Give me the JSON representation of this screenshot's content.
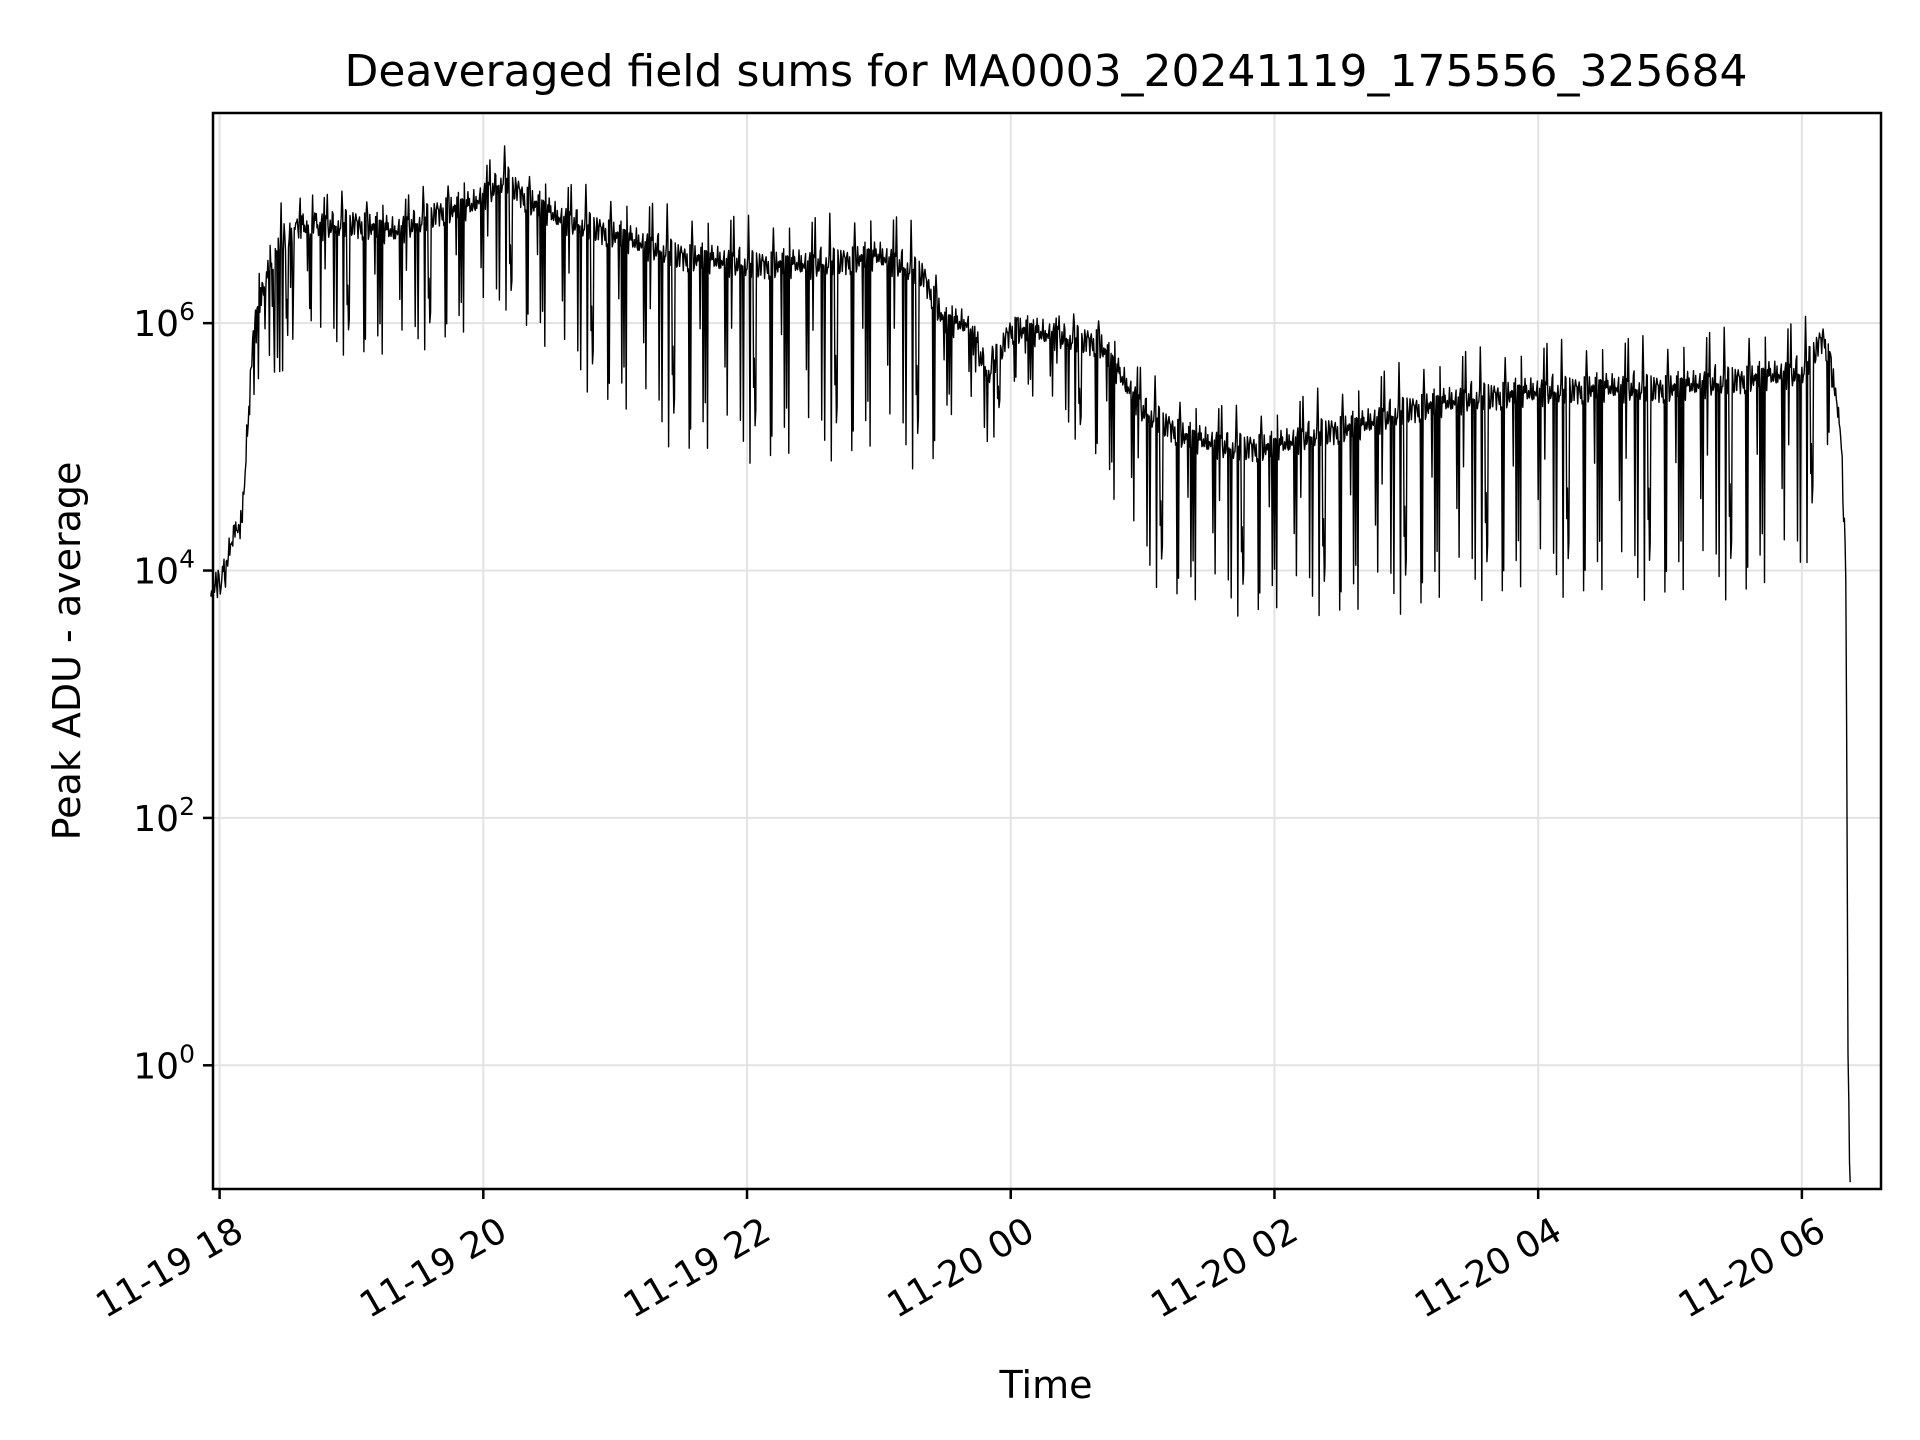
{
  "chart_data": {
    "type": "line",
    "title": "Deaveraged field sums for MA0003_20241119_175556_325684",
    "xlabel": "Time",
    "ylabel": "Peak ADU - average",
    "y_scale": "log",
    "ylim": [
      0.1,
      50000000
    ],
    "xlim": [
      "2024-11-19 17:57",
      "2024-11-20 06:36"
    ],
    "grid": true,
    "x_ticks": [
      {
        "at": "2024-11-19 18:00",
        "label": "11-19 18"
      },
      {
        "at": "2024-11-19 20:00",
        "label": "11-19 20"
      },
      {
        "at": "2024-11-19 22:00",
        "label": "11-19 22"
      },
      {
        "at": "2024-11-20 00:00",
        "label": "11-20 00"
      },
      {
        "at": "2024-11-20 02:00",
        "label": "11-20 02"
      },
      {
        "at": "2024-11-20 04:00",
        "label": "11-20 04"
      },
      {
        "at": "2024-11-20 06:00",
        "label": "11-20 06"
      }
    ],
    "y_ticks": [
      {
        "value": 1,
        "base": "10",
        "exp": "0"
      },
      {
        "value": 100,
        "base": "10",
        "exp": "2"
      },
      {
        "value": 10000,
        "base": "10",
        "exp": "4"
      },
      {
        "value": 1000000,
        "base": "10",
        "exp": "6"
      }
    ],
    "series": [
      {
        "color": "#000000",
        "x": [
          "2024-11-19 17:56",
          "2024-11-19 18:00",
          "2024-11-19 18:03",
          "2024-11-19 18:05",
          "2024-11-19 18:08",
          "2024-11-19 18:10",
          "2024-11-19 18:13",
          "2024-11-19 18:16",
          "2024-11-19 18:20",
          "2024-11-19 18:25",
          "2024-11-19 18:30",
          "2024-11-19 18:40",
          "2024-11-19 19:00",
          "2024-11-19 19:20",
          "2024-11-19 19:40",
          "2024-11-19 19:55",
          "2024-11-19 20:10",
          "2024-11-19 20:20",
          "2024-11-19 20:35",
          "2024-11-19 20:50",
          "2024-11-19 21:10",
          "2024-11-19 21:30",
          "2024-11-19 22:00",
          "2024-11-19 22:30",
          "2024-11-19 23:00",
          "2024-11-19 23:20",
          "2024-11-19 23:30",
          "2024-11-19 23:40",
          "2024-11-19 23:45",
          "2024-11-19 23:50",
          "2024-11-20 00:00",
          "2024-11-20 00:20",
          "2024-11-20 00:40",
          "2024-11-20 01:00",
          "2024-11-20 01:20",
          "2024-11-20 01:40",
          "2024-11-20 02:00",
          "2024-11-20 02:20",
          "2024-11-20 02:40",
          "2024-11-20 03:00",
          "2024-11-20 03:30",
          "2024-11-20 04:00",
          "2024-11-20 04:30",
          "2024-11-20 05:00",
          "2024-11-20 05:30",
          "2024-11-20 06:00",
          "2024-11-20 06:10",
          "2024-11-20 06:15",
          "2024-11-20 06:18",
          "2024-11-20 06:20",
          "2024-11-20 06:21",
          "2024-11-20 06:22"
        ],
        "y": [
          8000,
          8000,
          10000,
          18000,
          20000,
          25000,
          200000,
          1200000,
          2000000,
          3500000,
          5000000,
          6000000,
          6500000,
          5500000,
          8000000,
          9000000,
          15000000,
          10000000,
          7000000,
          6000000,
          4500000,
          3500000,
          3000000,
          3000000,
          3500000,
          2500000,
          1000000,
          1000000,
          600000,
          400000,
          900000,
          800000,
          700000,
          200000,
          120000,
          100000,
          100000,
          130000,
          150000,
          200000,
          250000,
          280000,
          300000,
          300000,
          350000,
          400000,
          800000,
          300000,
          100000,
          10000,
          1,
          0.1
        ],
        "spike_band_ratio": [
          1,
          1,
          1,
          1,
          1,
          1,
          1,
          3,
          4,
          5,
          6,
          6,
          6,
          6,
          6,
          6,
          6,
          6,
          8,
          10,
          12,
          15,
          15,
          15,
          15,
          15,
          4,
          3,
          3,
          3,
          2,
          3,
          5,
          10,
          10,
          10,
          10,
          12,
          14,
          16,
          16,
          16,
          18,
          18,
          20,
          18,
          5,
          1,
          1,
          1,
          1,
          1
        ]
      }
    ]
  }
}
